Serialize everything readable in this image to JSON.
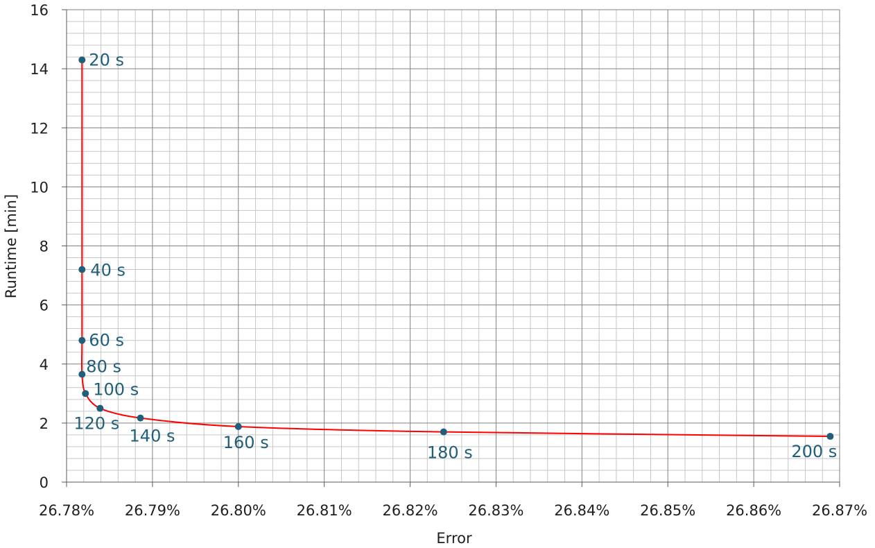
{
  "chart_data": {
    "type": "line",
    "xlabel": "Error",
    "ylabel": "Runtime [min]",
    "xlim": [
      26.78,
      26.87
    ],
    "ylim": [
      0,
      16
    ],
    "x_ticks": [
      "26.78%",
      "26.79%",
      "26.80%",
      "26.81%",
      "26.82%",
      "26.83%",
      "26.84%",
      "26.85%",
      "26.86%",
      "26.87%"
    ],
    "y_ticks": [
      "0",
      "2",
      "4",
      "6",
      "8",
      "10",
      "12",
      "14",
      "16"
    ],
    "grid": {
      "major": true,
      "minor": true,
      "x_minor_per_major": 5,
      "y_minor_per_major": 5
    },
    "legend": "none",
    "colors": {
      "line": "#ff0000",
      "marker": "#1f5f7a",
      "label": "#1f5f7a",
      "major_grid": "#808080",
      "minor_grid": "#c6c6c6"
    },
    "series": [
      {
        "x": [
          26.7818,
          26.7818,
          26.7818,
          26.7818,
          26.7822,
          26.7839,
          26.7886,
          26.8,
          26.8239,
          26.8689
        ],
        "y": [
          14.3,
          7.2,
          4.8,
          3.65,
          3.0,
          2.5,
          2.17,
          1.88,
          1.7,
          1.55
        ],
        "labels": [
          "20 s",
          "40 s",
          "60 s",
          "80 s",
          "100 s",
          "120 s",
          "140 s",
          "160 s",
          "180 s",
          "200 s"
        ]
      }
    ]
  }
}
